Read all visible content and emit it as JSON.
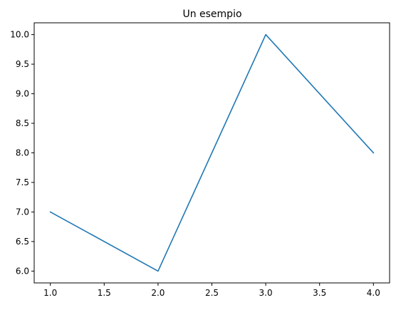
{
  "chart_data": {
    "type": "line",
    "title": "Un esempio",
    "xlabel": "",
    "ylabel": "",
    "x": [
      1,
      2,
      3,
      4
    ],
    "series": [
      {
        "values": [
          7,
          6,
          10,
          8
        ]
      }
    ],
    "xlim": [
      0.85,
      4.15
    ],
    "ylim": [
      5.8,
      10.2
    ],
    "xticks": [
      1.0,
      1.5,
      2.0,
      2.5,
      3.0,
      3.5,
      4.0
    ],
    "yticks": [
      6.0,
      6.5,
      7.0,
      7.5,
      8.0,
      8.5,
      9.0,
      9.5,
      10.0
    ],
    "xtick_labels": [
      "1.0",
      "1.5",
      "2.0",
      "2.5",
      "3.0",
      "3.5",
      "4.0"
    ],
    "ytick_labels": [
      "6.0",
      "6.5",
      "7.0",
      "7.5",
      "8.0",
      "8.5",
      "9.0",
      "9.5",
      "10.0"
    ],
    "grid": false,
    "line_color": "#1f77b4"
  }
}
